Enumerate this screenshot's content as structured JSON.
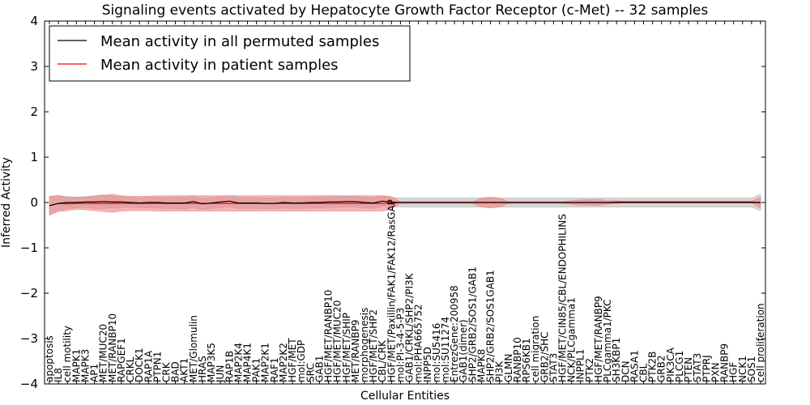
{
  "chart_data": {
    "type": "line",
    "title": "Signaling events activated by Hepatocyte Growth Factor Receptor (c-Met) -- 32 samples",
    "xlabel": "Cellular Entities",
    "ylabel": "Inferred Activity",
    "ylim": [
      -4,
      4
    ],
    "yticks": [
      -4,
      -3,
      -2,
      -1,
      0,
      1,
      2,
      3,
      4
    ],
    "ytick_labels": [
      "−4",
      "−3",
      "−2",
      "−1",
      "0",
      "1",
      "2",
      "3",
      "4"
    ],
    "grid": false,
    "legend_position": "top-left",
    "categories": [
      "apoptosis",
      "IL8",
      "cell motility",
      "MAPK1",
      "MAPK3",
      "AP1",
      "MET/MUC20",
      "MET/RANBP10",
      "RAPGEF1",
      "CRKL",
      "DOCK1",
      "RAP1A",
      "PTPN1",
      "CRK",
      "BAD",
      "AKT1",
      "MET/Glomulin",
      "HRAS",
      "MAP3K5",
      "JUN",
      "RAP1B",
      "MAP2K4",
      "MAP4K1",
      "PAK1",
      "MAP2K1",
      "RAF1",
      "MAP2K2",
      "HGF/MET",
      "mol:GDP",
      "SRC",
      "GAB1",
      "HGF/MET/RANBP10",
      "HGF/MET/MUC20",
      "HGF/MET/SHIP",
      "MET/RANBP9",
      "morphogenesis",
      "HGF/MET/SHP2",
      "CBL/CRK",
      "HGF/MET/Paxillin/FAK1/FAK12/RasGAP",
      "mol:PI-3-4-5-P3",
      "GAB1/CRKL/SHP2/PI3K",
      "mol:PHA665752",
      "INPP5D",
      "mol:SU5416",
      "mol:SU11274",
      "EntrezGene:200958",
      "GAB1(dimer)",
      "SHP2/GRB2/SOS1/GAB1",
      "MAPK8",
      "SHP2/GRB2/SOS1GAB1",
      "PI3K",
      "GLMN",
      "RANBP10",
      "RPS6KB1",
      "cell migration",
      "GRB2/SHC",
      "STAT3",
      "HGF/MET/CIN85/CBL/ENDOPHILINS",
      "NCK/PLCgamma1",
      "INPPL1",
      "PTK2",
      "HGF/MET/RANBP9",
      "PLCgamma1/PKC",
      "SH3KBP1",
      "DCN",
      "RASA1",
      "CBL",
      "PTK2B",
      "GRB2",
      "PIK3CA",
      "PLCG1",
      "PTEN",
      "STAT3",
      "PTPRJ",
      "PXN",
      "RANBP9",
      "HGF",
      "NCK1",
      "SOS1",
      "cell proliferation"
    ],
    "series": [
      {
        "name": "Mean activity in all permuted samples",
        "color": "#000000",
        "band_color": "#b0b0b0",
        "values": [
          -0.07,
          -0.02,
          0.0,
          0.0,
          0.01,
          0.01,
          0.02,
          0.01,
          0.01,
          0.0,
          -0.01,
          0.0,
          0.0,
          -0.01,
          -0.01,
          -0.01,
          0.02,
          -0.03,
          -0.01,
          0.01,
          0.03,
          -0.01,
          -0.01,
          -0.01,
          -0.02,
          -0.02,
          0.0,
          -0.01,
          -0.01,
          0.0,
          0.0,
          0.01,
          0.01,
          0.02,
          0.02,
          0.0,
          -0.01,
          0.03,
          0.01,
          0.0,
          0.0,
          0.0,
          0.0,
          0.0,
          0.0,
          0.0,
          0.0,
          0.0,
          0.0,
          0.0,
          0.0,
          0.0,
          0.0,
          0.0,
          0.0,
          0.0,
          0.0,
          0.0,
          0.0,
          0.0,
          0.0,
          0.0,
          0.0,
          0.0,
          0.0,
          0.0,
          0.0,
          0.0,
          0.0,
          0.0,
          0.0,
          0.0,
          0.0,
          0.0,
          0.0,
          0.0,
          0.0,
          0.0,
          0.0,
          0.0
        ],
        "spread": [
          0.22,
          0.15,
          0.13,
          0.12,
          0.12,
          0.14,
          0.15,
          0.13,
          0.12,
          0.11,
          0.11,
          0.12,
          0.12,
          0.12,
          0.13,
          0.13,
          0.13,
          0.12,
          0.12,
          0.12,
          0.12,
          0.12,
          0.12,
          0.12,
          0.12,
          0.12,
          0.12,
          0.12,
          0.12,
          0.12,
          0.12,
          0.12,
          0.12,
          0.12,
          0.12,
          0.12,
          0.12,
          0.12,
          0.1,
          0.1,
          0.1,
          0.1,
          0.1,
          0.1,
          0.1,
          0.1,
          0.1,
          0.1,
          0.1,
          0.1,
          0.1,
          0.1,
          0.1,
          0.1,
          0.1,
          0.1,
          0.1,
          0.1,
          0.1,
          0.1,
          0.1,
          0.1,
          0.1,
          0.1,
          0.1,
          0.1,
          0.1,
          0.1,
          0.1,
          0.1,
          0.1,
          0.1,
          0.1,
          0.1,
          0.1,
          0.1,
          0.1,
          0.1,
          0.1,
          0.18
        ]
      },
      {
        "name": "Mean activity in patient samples",
        "color": "#ff0000",
        "band_color": "#f08080",
        "values": [
          -0.07,
          -0.02,
          -0.03,
          -0.02,
          -0.02,
          -0.02,
          -0.02,
          -0.02,
          -0.02,
          -0.02,
          -0.02,
          -0.02,
          -0.02,
          -0.02,
          -0.02,
          -0.02,
          -0.02,
          -0.02,
          -0.02,
          -0.02,
          -0.02,
          -0.02,
          -0.02,
          -0.02,
          -0.02,
          -0.02,
          -0.02,
          -0.02,
          -0.02,
          -0.02,
          -0.02,
          -0.02,
          -0.02,
          -0.02,
          -0.02,
          -0.02,
          -0.02,
          -0.02,
          -0.01,
          0.0,
          0.0,
          0.0,
          0.0,
          0.0,
          0.0,
          0.0,
          0.0,
          0.0,
          0.0,
          0.0,
          0.0,
          0.0,
          0.0,
          0.0,
          0.0,
          0.0,
          0.0,
          0.0,
          0.0,
          0.0,
          0.0,
          0.0,
          0.0,
          0.01,
          0.01,
          0.01,
          0.01,
          0.01,
          0.01,
          0.01,
          0.01,
          0.01,
          0.01,
          0.01,
          0.01,
          0.01,
          0.01,
          0.01,
          0.01,
          0.0
        ],
        "spread": [
          0.2,
          0.18,
          0.15,
          0.13,
          0.14,
          0.16,
          0.18,
          0.2,
          0.17,
          0.16,
          0.16,
          0.16,
          0.17,
          0.17,
          0.17,
          0.17,
          0.17,
          0.17,
          0.17,
          0.17,
          0.17,
          0.17,
          0.17,
          0.17,
          0.17,
          0.17,
          0.17,
          0.17,
          0.17,
          0.17,
          0.17,
          0.17,
          0.17,
          0.17,
          0.17,
          0.17,
          0.17,
          0.17,
          0.14,
          0.02,
          0.02,
          0.02,
          0.02,
          0.02,
          0.02,
          0.02,
          0.02,
          0.02,
          0.1,
          0.12,
          0.1,
          0.02,
          0.02,
          0.02,
          0.02,
          0.02,
          0.02,
          0.02,
          0.04,
          0.06,
          0.06,
          0.07,
          0.04,
          0.03,
          0.02,
          0.02,
          0.02,
          0.02,
          0.02,
          0.02,
          0.02,
          0.02,
          0.02,
          0.02,
          0.02,
          0.02,
          0.02,
          0.02,
          0.02,
          0.12
        ]
      }
    ]
  }
}
